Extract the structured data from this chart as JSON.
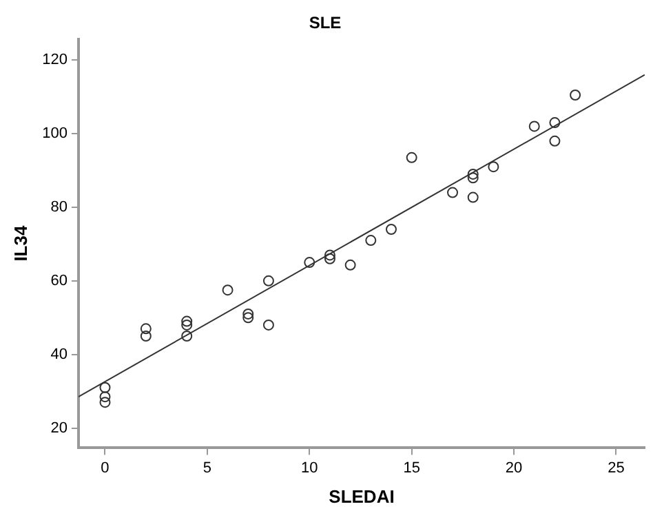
{
  "chart_data": {
    "type": "scatter",
    "title": "SLE",
    "xlabel": "SLEDAI",
    "ylabel": "IL34",
    "xlim": [
      -1.3,
      26.4
    ],
    "ylim": [
      14.6,
      125.7
    ],
    "xticks": [
      0,
      5,
      10,
      15,
      20,
      25
    ],
    "yticks": [
      20,
      40,
      60,
      80,
      100,
      120
    ],
    "grid": false,
    "legend": false,
    "marker": "circle",
    "series": [
      {
        "color": "#333333",
        "x": [
          0,
          0,
          0,
          2,
          2,
          4,
          4,
          4,
          6,
          7,
          7,
          8,
          8,
          10,
          11,
          11,
          12,
          13,
          14,
          15,
          17,
          18,
          18,
          18,
          19,
          21,
          22,
          22,
          23
        ],
        "values": [
          31,
          28.5,
          27,
          47,
          45,
          49,
          48,
          45,
          57.5,
          51,
          50,
          60,
          48,
          65,
          67,
          66,
          64.3,
          71,
          74,
          93.5,
          84,
          89,
          88,
          82.7,
          91,
          102,
          103,
          98,
          110.5
        ]
      },
      {
        "type": "line",
        "color": "#333333",
        "marker": "none",
        "line_style": "solid",
        "x": [
          -1.3,
          26.4
        ],
        "values": [
          28.5,
          116
        ]
      }
    ]
  }
}
